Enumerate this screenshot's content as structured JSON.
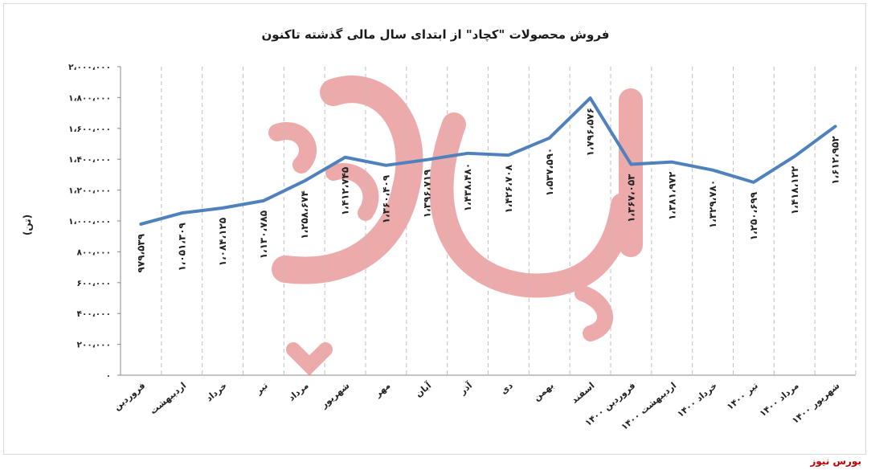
{
  "source": "بورس نیوز",
  "watermark": "بورس نیوز",
  "colors": {
    "line": "#4f81bd",
    "grid": "#bfbfbf",
    "watermark": "#e06666",
    "source": "#c00000"
  },
  "chart_data": {
    "type": "line",
    "title": "فروش محصولات \"کچاد\" از ابتدای سال مالی گذشته تاکنون",
    "ylabel": "(تن)",
    "xlabel": "",
    "ylim": [
      0,
      2000000
    ],
    "yticks": [
      0,
      200000,
      400000,
      600000,
      800000,
      1000000,
      1200000,
      1400000,
      1600000,
      1800000,
      2000000
    ],
    "ytick_labels": [
      "۰",
      "۲۰۰،۰۰۰",
      "۴۰۰،۰۰۰",
      "۶۰۰،۰۰۰",
      "۸۰۰،۰۰۰",
      "۱،۰۰۰،۰۰۰",
      "۱،۲۰۰،۰۰۰",
      "۱،۴۰۰،۰۰۰",
      "۱،۶۰۰،۰۰۰",
      "۱،۸۰۰،۰۰۰",
      "۲،۰۰۰،۰۰۰"
    ],
    "grid": "vertical-category-lines",
    "legend": "none",
    "categories": [
      "فروردین",
      "اردیبهشت",
      "خرداد",
      "تیر",
      "مرداد",
      "شهریور",
      "مهر",
      "آبان",
      "آذر",
      "دی",
      "بهمن",
      "اسفند",
      "فروردین ۱۴۰۰",
      "اردیبهشت ۱۴۰۰",
      "خرداد ۱۴۰۰",
      "تیر ۱۴۰۰",
      "مرداد ۱۴۰۰",
      "شهریور ۱۴۰۰"
    ],
    "values": [
      979539,
      1051309,
      1084125,
      1130785,
      1258674,
      1412745,
      1360409,
      1396719,
      1438480,
      1426708,
      1537590,
      1796576,
      1367053,
      1381972,
      1329780,
      1250699,
      1418122,
      1612952
    ],
    "data_labels": [
      "۹۷۹،۵۳۹",
      "۱،۰۵۱،۳۰۹",
      "۱،۰۸۴،۱۲۵",
      "۱،۱۳۰،۷۸۵",
      "۱،۲۵۸،۶۷۴",
      "۱،۴۱۲،۷۴۵",
      "۱،۳۶۰،۴۰۹",
      "۱،۳۹۶،۷۱۹",
      "۱،۴۳۸،۴۸۰",
      "۱،۴۲۶،۷۰۸",
      "۱،۵۳۷،۵۹۰",
      "۱،۷۹۶،۵۷۶",
      "۱،۳۶۷،۰۵۳",
      "۱،۳۸۱،۹۷۲",
      "۱،۳۲۹،۷۸۰",
      "۱،۲۵۰،۶۹۹",
      "۱،۴۱۸،۱۲۲",
      "۱،۶۱۲،۹۵۲"
    ]
  }
}
